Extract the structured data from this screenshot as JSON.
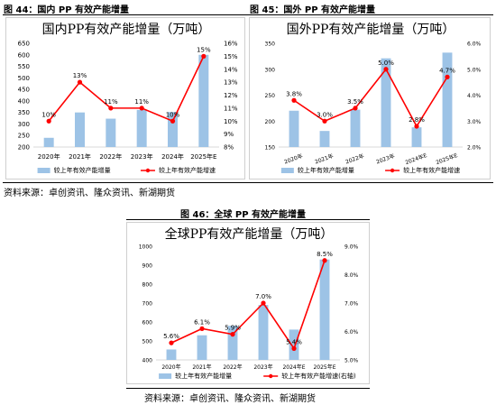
{
  "captions": {
    "fig44": "图 44：国内 PP 有效产能增量",
    "fig45": "图 45：国外 PP 有效产能增量",
    "fig46": "图 46：全球 PP 有效产能增量"
  },
  "source_top": "资料来源：卓创资讯、隆众资讯、新湖期货",
  "source_bottom": "资料来源：卓创资讯、隆众资讯、新湖期货",
  "colors": {
    "bar": "#9dc3e6",
    "line": "#ff0000",
    "axis": "#d9d9d9"
  },
  "chart_data": [
    {
      "type": "bar+line",
      "title": "国内PP有效产能增量（万吨）",
      "categories": [
        "2020年",
        "2021年",
        "2022年",
        "2023年",
        "2024年",
        "2025年E"
      ],
      "bar_series": {
        "name": "较上年有效产能增量",
        "values": [
          240,
          350,
          323,
          361,
          352,
          600
        ]
      },
      "line_series": {
        "name": "较上年有效产能增速",
        "values": [
          10,
          13,
          11,
          11,
          10,
          15
        ],
        "labels": [
          "10%",
          "13%",
          "11%",
          "11%",
          "10%",
          "15%"
        ]
      },
      "y_left": {
        "range": [
          200,
          650
        ],
        "ticks": [
          "200",
          "250",
          "300",
          "350",
          "400",
          "450",
          "500",
          "550",
          "600",
          "650"
        ]
      },
      "y_right": {
        "range": [
          8,
          16
        ],
        "ticks": [
          "8%",
          "9%",
          "10%",
          "11%",
          "12%",
          "13%",
          "14%",
          "15%",
          "16%"
        ]
      },
      "grid": false,
      "legend": "bottom"
    },
    {
      "type": "bar+line",
      "title": "国外PP有效产能增量（万吨）",
      "categories": [
        "2020年",
        "2021年",
        "2022年",
        "2023年",
        "2024年E",
        "2025年E"
      ],
      "bar_series": {
        "name": "较上年有效产能增量",
        "values": [
          220,
          181,
          222,
          321,
          188,
          332
        ]
      },
      "line_series": {
        "name": "较上年有效产能增速",
        "values": [
          3.8,
          3.0,
          3.5,
          5.0,
          2.8,
          4.7
        ],
        "labels": [
          "3.8%",
          "3.0%",
          "3.5%",
          "5.0%",
          "2.8%",
          "4.7%"
        ]
      },
      "y_left": {
        "range": [
          150,
          350
        ],
        "ticks": [
          "150",
          "200",
          "250",
          "300",
          "350"
        ]
      },
      "y_right": {
        "range": [
          2.0,
          6.0
        ],
        "ticks": [
          "2.0%",
          "3.0%",
          "4.0%",
          "5.0%",
          "6.0%"
        ]
      },
      "grid": false,
      "legend": "bottom"
    },
    {
      "type": "bar+line",
      "title": "全球PP有效产能增量（万吨）",
      "categories": [
        "2020年",
        "2021年",
        "2022年",
        "2023年",
        "2024年E",
        "2025年E"
      ],
      "bar_series": {
        "name": "较上年有效产能增量",
        "values": [
          455,
          530,
          580,
          690,
          560,
          930
        ]
      },
      "line_series": {
        "name": "较上年有效产能增速(右轴)",
        "values": [
          5.6,
          6.1,
          5.9,
          7.0,
          5.4,
          8.5
        ],
        "labels": [
          "5.6%",
          "6.1%",
          "5.9%",
          "7.0%",
          "5.4%",
          "8.5%"
        ]
      },
      "y_left": {
        "range": [
          400,
          1000
        ],
        "ticks": [
          "400",
          "500",
          "600",
          "700",
          "800",
          "900",
          "1000"
        ]
      },
      "y_right": {
        "range": [
          5.0,
          9.0
        ],
        "ticks": [
          "5.0%",
          "6.0%",
          "7.0%",
          "8.0%",
          "9.0%"
        ]
      },
      "grid": false,
      "legend": "bottom"
    }
  ]
}
